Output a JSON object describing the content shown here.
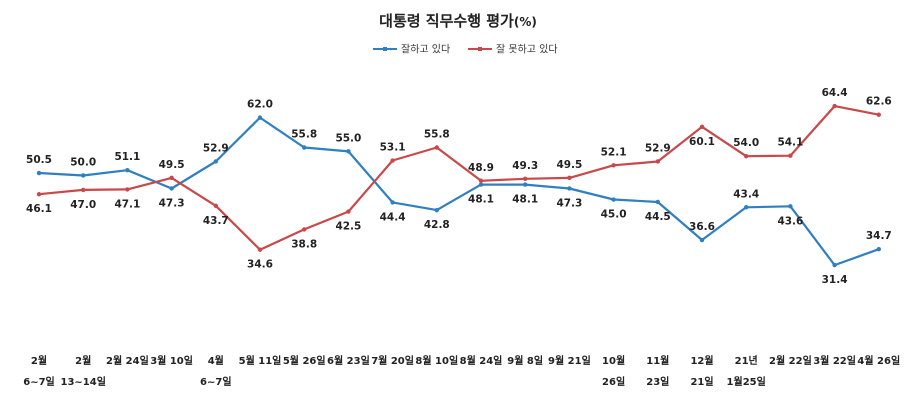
{
  "chart_data": {
    "type": "line",
    "title": "대통령 직무수행 평가",
    "title_unit": "(%)",
    "categories": [
      [
        "2월",
        "6~7일"
      ],
      [
        "2월",
        "13~14일"
      ],
      [
        "2월 24일"
      ],
      [
        "3월 10일"
      ],
      [
        "4월",
        "6~7일"
      ],
      [
        "5월 11일"
      ],
      [
        "5월 26일"
      ],
      [
        "6월 23일"
      ],
      [
        "7월 20일"
      ],
      [
        "8월 10일"
      ],
      [
        "8월 24일"
      ],
      [
        "9월 8일"
      ],
      [
        "9월 21일"
      ],
      [
        "10월",
        "26일"
      ],
      [
        "11월",
        "23일"
      ],
      [
        "12월",
        "21일"
      ],
      [
        "21년",
        "1월25일"
      ],
      [
        "2월 22일"
      ],
      [
        "3월 22일"
      ],
      [
        "4월 26일"
      ]
    ],
    "series": [
      {
        "name": "잘하고 있다",
        "color": "#2f7fc1",
        "values": [
          50.5,
          50.0,
          51.1,
          47.3,
          52.9,
          62.0,
          55.8,
          55.0,
          44.4,
          42.8,
          48.1,
          48.1,
          47.3,
          45.0,
          44.5,
          36.6,
          43.4,
          43.6,
          31.4,
          34.7
        ],
        "labels": [
          "50.5",
          "50.0",
          "51.1",
          "47.3",
          "52.9",
          "62.0",
          "55.8",
          "55.0",
          "44.4",
          "42.8",
          "48.1",
          "48.1",
          "47.3",
          "45.0",
          "44.5",
          "36.6",
          "43.4",
          "43.6",
          "31.4",
          "34.7"
        ]
      },
      {
        "name": "잘 못하고 있다",
        "color": "#c9484a",
        "values": [
          46.1,
          47.0,
          47.1,
          49.5,
          43.7,
          34.6,
          38.8,
          42.5,
          53.1,
          55.8,
          48.9,
          49.3,
          49.5,
          52.1,
          52.9,
          60.1,
          54.0,
          54.1,
          64.4,
          62.6
        ],
        "labels": [
          "46.1",
          "47.0",
          "47.1",
          "49.5",
          "43.7",
          "34.6",
          "38.8",
          "42.5",
          "53.1",
          "55.8",
          "48.9",
          "49.3",
          "49.5",
          "52.1",
          "52.9",
          "60.1",
          "54.0",
          "54.1",
          "64.4",
          "62.6"
        ]
      }
    ],
    "ylim": [
      20,
      75
    ],
    "grid": false,
    "legend_position": "top-center"
  }
}
